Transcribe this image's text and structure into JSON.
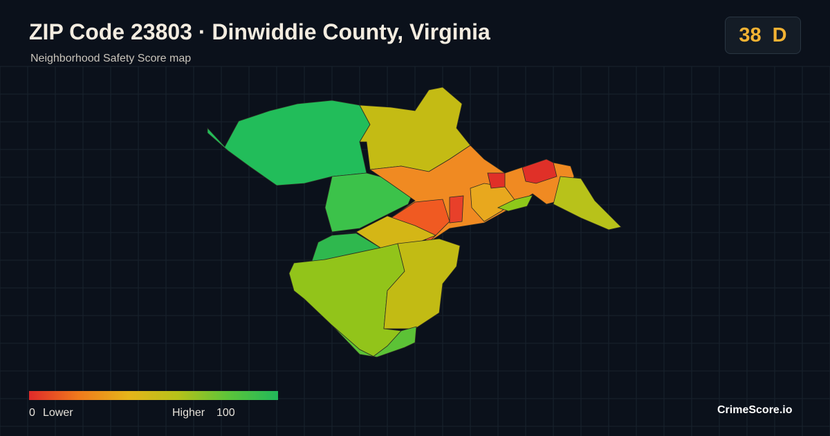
{
  "header": {
    "title": "ZIP Code 23803 · Dinwiddie County, Virginia",
    "subtitle": "Neighborhood Safety Score map"
  },
  "score": {
    "value": "38",
    "grade": "D"
  },
  "legend": {
    "min": "0",
    "min_label": "Lower",
    "max_label": "Higher",
    "max": "100"
  },
  "brand": "CrimeScore.io"
}
